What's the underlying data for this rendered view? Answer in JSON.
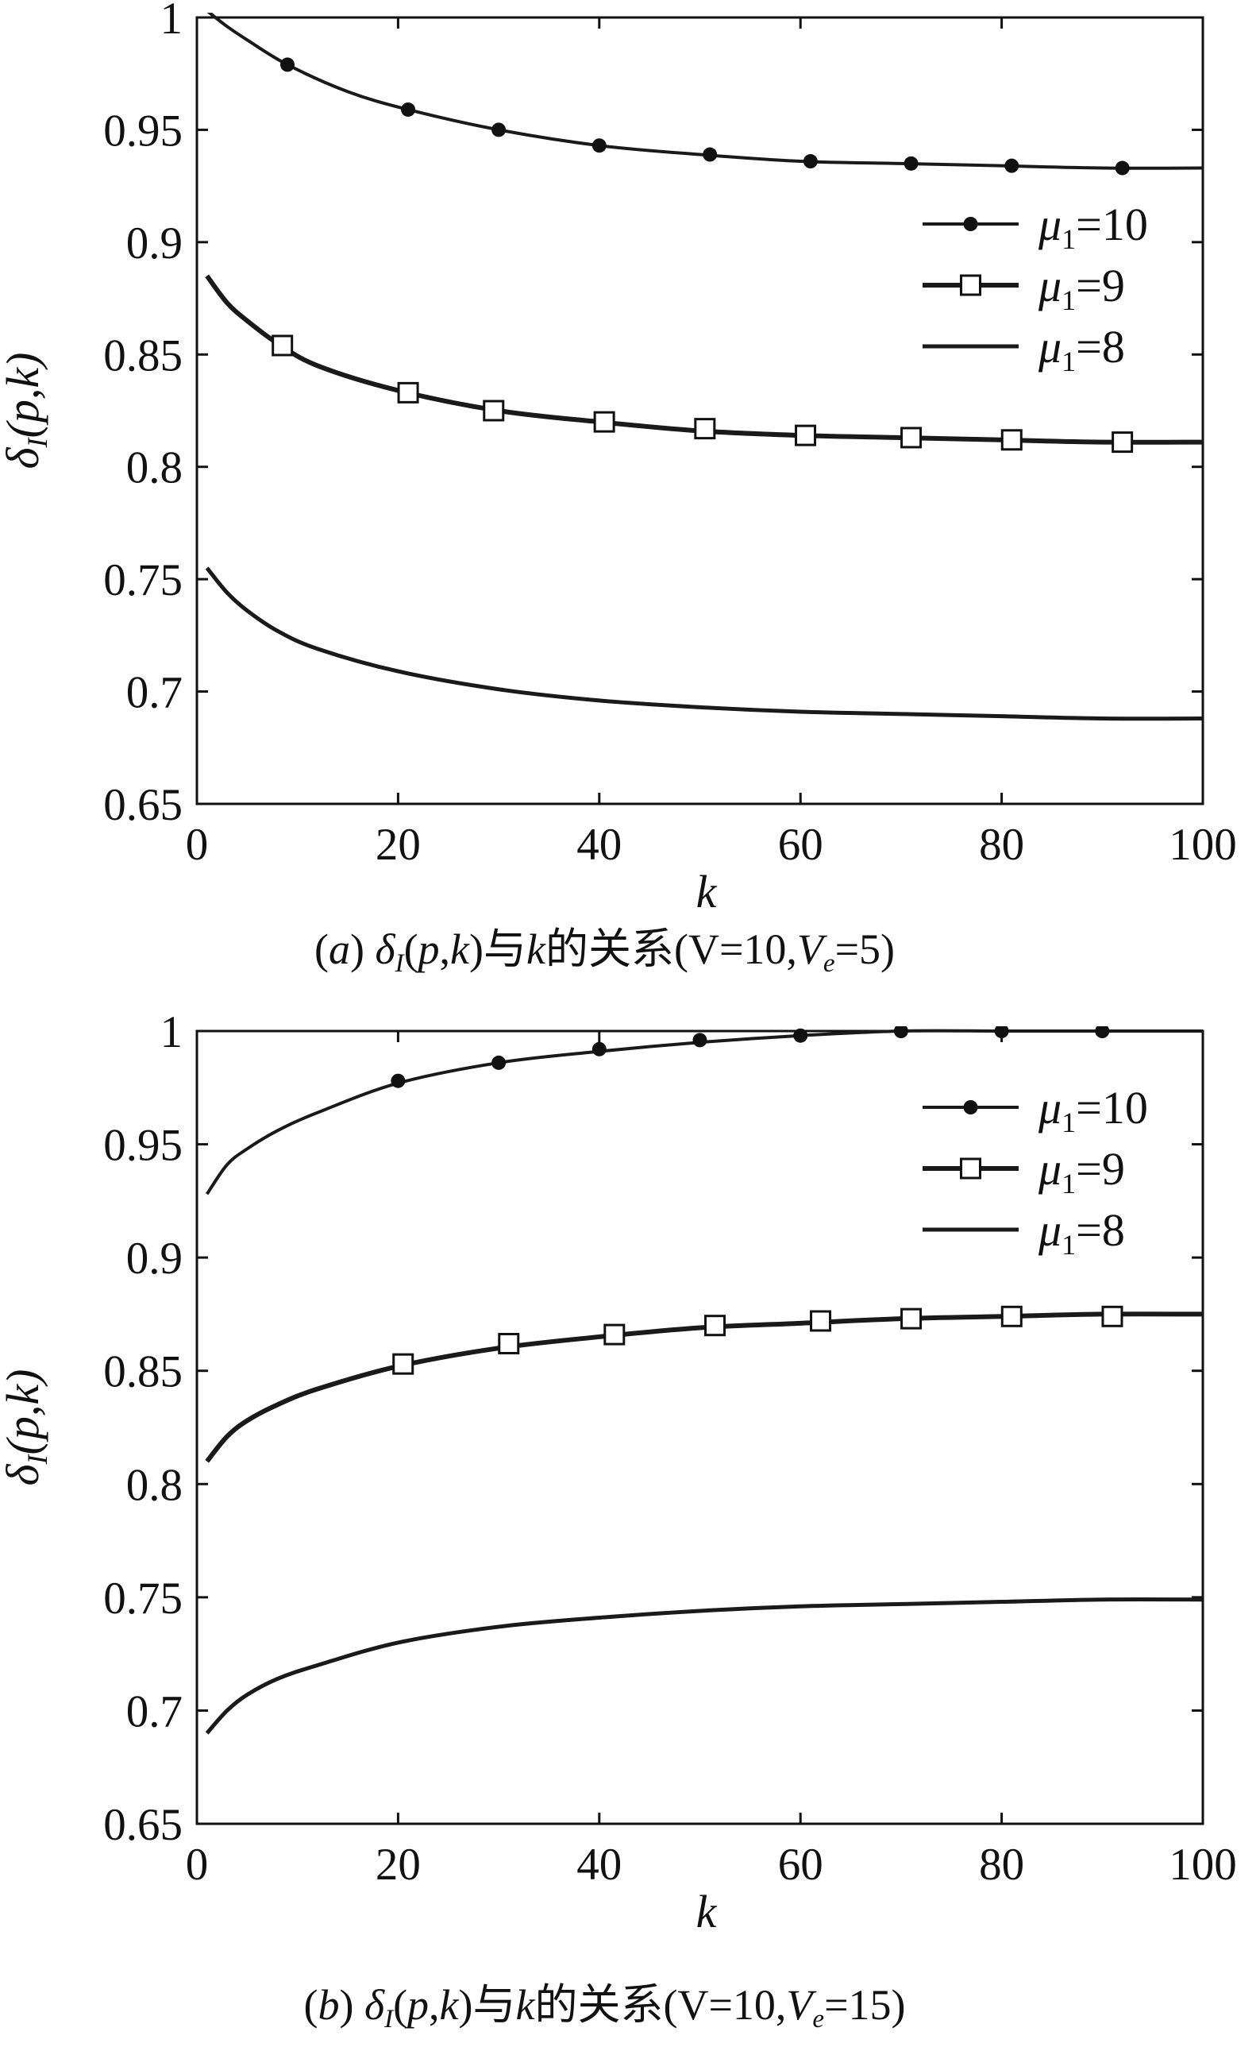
{
  "chart_data": [
    {
      "type": "line",
      "caption": "(a) δI(p,k)与k的关系(V=10,Ve=5)",
      "xlabel": "k",
      "ylabel": "δI(p,k)",
      "xlim": [
        0,
        100
      ],
      "ylim": [
        0.65,
        1
      ],
      "xticks": [
        "0",
        "20",
        "40",
        "60",
        "80",
        "100"
      ],
      "yticks": [
        "0.65",
        "0.7",
        "0.75",
        "0.8",
        "0.85",
        "0.9",
        "0.95",
        "1"
      ],
      "grid": false,
      "legend_position": "top-right",
      "series": [
        {
          "name": "μ1=10",
          "marker": "filled-circle",
          "x": [
            1,
            3,
            5,
            9,
            15,
            21,
            30,
            40,
            50,
            60,
            70,
            80,
            90,
            100
          ],
          "y": [
            1.003,
            0.996,
            0.99,
            0.979,
            0.967,
            0.959,
            0.95,
            0.943,
            0.939,
            0.936,
            0.935,
            0.934,
            0.933,
            0.933
          ],
          "marker_x": [
            9,
            21,
            30,
            40,
            51,
            61,
            71,
            81,
            92
          ],
          "marker_y": [
            0.979,
            0.959,
            0.95,
            0.943,
            0.939,
            0.936,
            0.935,
            0.934,
            0.933
          ]
        },
        {
          "name": "μ1=9",
          "marker": "open-square",
          "x": [
            1,
            3,
            5,
            8,
            12,
            20,
            30,
            40,
            50,
            60,
            70,
            80,
            90,
            100
          ],
          "y": [
            0.885,
            0.873,
            0.865,
            0.855,
            0.845,
            0.834,
            0.825,
            0.82,
            0.816,
            0.814,
            0.813,
            0.812,
            0.811,
            0.811
          ],
          "marker_x": [
            8.5,
            21,
            29.5,
            40.5,
            50.5,
            60.5,
            71,
            81,
            92
          ],
          "marker_y": [
            0.854,
            0.833,
            0.825,
            0.82,
            0.817,
            0.814,
            0.813,
            0.812,
            0.811
          ]
        },
        {
          "name": "μ1=8",
          "marker": "none",
          "x": [
            1,
            3,
            5,
            8,
            12,
            20,
            30,
            40,
            50,
            60,
            70,
            80,
            90,
            100
          ],
          "y": [
            0.755,
            0.744,
            0.736,
            0.727,
            0.719,
            0.709,
            0.701,
            0.696,
            0.693,
            0.691,
            0.69,
            0.689,
            0.688,
            0.688
          ]
        }
      ]
    },
    {
      "type": "line",
      "caption": "(b) δI(p,k)与k的关系(V=10,Ve=15)",
      "xlabel": "k",
      "ylabel": "δI(p,k)",
      "xlim": [
        0,
        100
      ],
      "ylim": [
        0.65,
        1
      ],
      "xticks": [
        "0",
        "20",
        "40",
        "60",
        "80",
        "100"
      ],
      "yticks": [
        "0.65",
        "0.7",
        "0.75",
        "0.8",
        "0.85",
        "0.9",
        "0.95",
        "1"
      ],
      "grid": false,
      "legend_position": "top-right",
      "series": [
        {
          "name": "μ1=10",
          "marker": "filled-circle",
          "x": [
            1,
            3,
            5,
            8,
            12,
            20,
            30,
            40,
            50,
            60,
            70,
            80,
            90,
            100
          ],
          "y": [
            0.928,
            0.941,
            0.948,
            0.956,
            0.964,
            0.977,
            0.986,
            0.991,
            0.995,
            0.998,
            1.0,
            1.0,
            1.0,
            1.0
          ],
          "marker_x": [
            20,
            30,
            40,
            50,
            60,
            70,
            80,
            90
          ],
          "marker_y": [
            0.978,
            0.986,
            0.992,
            0.996,
            0.998,
            1.0,
            1.0,
            1.0
          ]
        },
        {
          "name": "μ1=9",
          "marker": "open-square",
          "x": [
            1,
            3,
            5,
            8,
            12,
            20,
            30,
            40,
            50,
            60,
            70,
            80,
            90,
            100
          ],
          "y": [
            0.81,
            0.821,
            0.828,
            0.835,
            0.842,
            0.852,
            0.86,
            0.865,
            0.869,
            0.871,
            0.873,
            0.874,
            0.875,
            0.875
          ],
          "marker_x": [
            20.5,
            31,
            41.5,
            51.5,
            62,
            71,
            81,
            91
          ],
          "marker_y": [
            0.853,
            0.862,
            0.866,
            0.87,
            0.872,
            0.873,
            0.874,
            0.874
          ]
        },
        {
          "name": "μ1=8",
          "marker": "none",
          "x": [
            1,
            3,
            5,
            8,
            12,
            20,
            30,
            40,
            50,
            60,
            70,
            80,
            90,
            100
          ],
          "y": [
            0.69,
            0.7,
            0.707,
            0.714,
            0.72,
            0.73,
            0.737,
            0.741,
            0.744,
            0.746,
            0.747,
            0.748,
            0.749,
            0.749
          ]
        }
      ]
    }
  ]
}
